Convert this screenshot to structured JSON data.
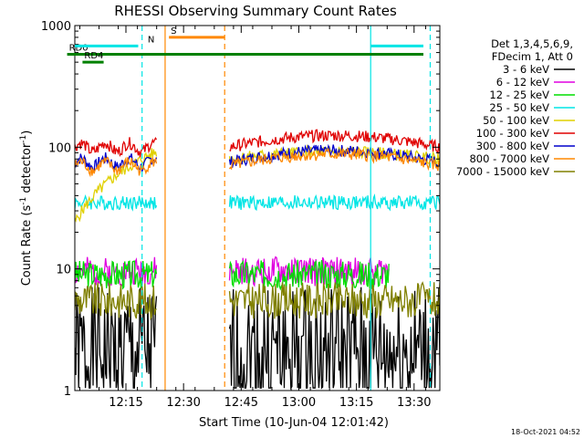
{
  "chart_data": {
    "type": "line",
    "title": "RHESSI Observing Summary Count Rates",
    "xlabel": "Start Time (10-Jun-04 12:01:42)",
    "ylabel_main": "Count Rate (s",
    "ylabel_sup1": "-1",
    "ylabel_mid": " detector",
    "ylabel_sup2": "-1",
    "ylabel_end": ")",
    "y_scale": "log",
    "ylim": [
      1,
      1000
    ],
    "xlim_minutes_after_start": [
      0,
      95
    ],
    "x_ticks": [
      {
        "minute": 13.3,
        "label": "12:15"
      },
      {
        "minute": 28.3,
        "label": "12:30"
      },
      {
        "minute": 43.3,
        "label": "12:45"
      },
      {
        "minute": 58.3,
        "label": "13:00"
      },
      {
        "minute": 73.3,
        "label": "13:15"
      },
      {
        "minute": 88.3,
        "label": "13:30"
      }
    ],
    "y_ticks": [
      {
        "value": 1,
        "label": "1"
      },
      {
        "value": 10,
        "label": "10"
      },
      {
        "value": 100,
        "label": "100"
      },
      {
        "value": 1000,
        "label": "1000"
      }
    ],
    "legend_header": [
      "Det 1,3,4,5,6,9,",
      "FDecim 1, Att 0"
    ],
    "legend_placement": "right",
    "series": [
      {
        "name": "3 - 6 keV",
        "color": "#000000",
        "base": 2.0,
        "noise": 0.55,
        "gaps": [
          [
            21.5,
            40
          ]
        ],
        "seed": 1
      },
      {
        "name": "6 - 12 keV",
        "color": "#e000e0",
        "base": 9.5,
        "noise": 0.12,
        "gaps": [
          [
            21.5,
            40
          ],
          [
            82,
            95
          ]
        ],
        "seed": 2
      },
      {
        "name": "12 - 25 keV",
        "color": "#00dd00",
        "base": 9.0,
        "noise": 0.12,
        "gaps": [
          [
            21.5,
            40
          ],
          [
            82,
            95
          ]
        ],
        "seed": 3
      },
      {
        "name": "25 - 50 keV",
        "color": "#00e5e5",
        "base": 35,
        "noise": 0.06,
        "gaps": [
          [
            21.5,
            40
          ]
        ],
        "seed": 4
      },
      {
        "name": "50 - 100 keV",
        "color": "#e0d000",
        "base": 80,
        "noise": 0.05,
        "gaps": [
          [
            21.5,
            40
          ]
        ],
        "seed": 5
      },
      {
        "name": "100 - 300 keV",
        "color": "#e00000",
        "base": 100,
        "noise": 0.05,
        "gaps": [
          [
            21.5,
            40
          ]
        ],
        "seed": 6
      },
      {
        "name": "300 - 800 keV",
        "color": "#0000cc",
        "base": 75,
        "noise": 0.05,
        "gaps": [
          [
            21.5,
            40
          ]
        ],
        "seed": 7
      },
      {
        "name": "800 - 7000 keV",
        "color": "#ff8800",
        "base": 70,
        "noise": 0.05,
        "gaps": [
          [
            21.5,
            40
          ]
        ],
        "seed": 8
      },
      {
        "name": "7000 - 15000 keV",
        "color": "#808000",
        "base": 5.5,
        "noise": 0.15,
        "gaps": [
          [
            21.5,
            40
          ]
        ],
        "seed": 9
      }
    ],
    "flag_bars": [
      {
        "label": "RD0",
        "color": "#008000",
        "start": -2,
        "end": 95,
        "level": 580
      },
      {
        "label": "RD4",
        "color": "#008000",
        "start": 2,
        "end": 7.5,
        "level": 500
      },
      {
        "label": "",
        "color": "#00e5e5",
        "start": 0,
        "end": 16.5,
        "level": 680
      },
      {
        "label": "",
        "color": "#00e5e5",
        "start": 77,
        "end": 95,
        "level": 680
      },
      {
        "label": "S",
        "color": "#ff8800",
        "start": 24.5,
        "end": 39,
        "level": 800
      },
      {
        "label": "N",
        "color": "#00e5e5",
        "start": 18.5,
        "end": 18.5,
        "level": 680
      }
    ],
    "vertical_markers": [
      {
        "minute": 17.5,
        "color": "#00e5e5",
        "dashed": true
      },
      {
        "minute": 23.5,
        "color": "#ff8800",
        "dashed": false
      },
      {
        "minute": 39,
        "color": "#ff8800",
        "dashed": true
      },
      {
        "minute": 77,
        "color": "#00e5e5",
        "dashed": false
      },
      {
        "minute": 92.5,
        "color": "#00e5e5",
        "dashed": true
      }
    ]
  },
  "timestamp": "18-Oct-2021 04:52"
}
